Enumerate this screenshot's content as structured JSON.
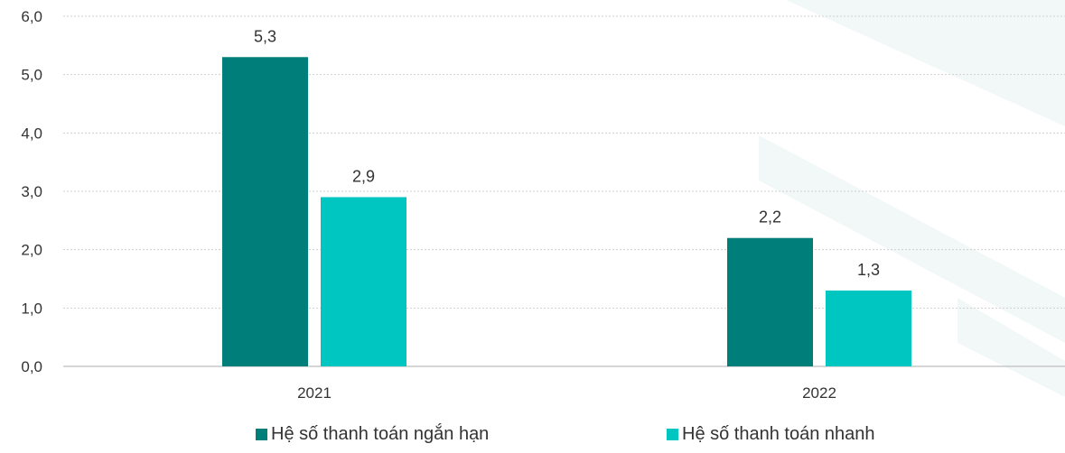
{
  "chart_data": {
    "type": "bar",
    "categories": [
      "2021",
      "2022"
    ],
    "series": [
      {
        "name": "Hệ số thanh toán ngắn hạn",
        "values": [
          5.3,
          2.2
        ],
        "color": "#007f7a"
      },
      {
        "name": "Hệ số thanh toán nhanh",
        "values": [
          2.9,
          1.3
        ],
        "color": "#00c6c2"
      }
    ],
    "value_labels": [
      [
        "5,3",
        "2,2"
      ],
      [
        "2,9",
        "1,3"
      ]
    ],
    "y_ticks": [
      "0,0",
      "1,0",
      "2,0",
      "3,0",
      "4,0",
      "5,0",
      "6,0"
    ],
    "ylim": [
      0,
      6
    ],
    "grid": true,
    "legend_position": "bottom",
    "title": "",
    "xlabel": "",
    "ylabel": ""
  }
}
